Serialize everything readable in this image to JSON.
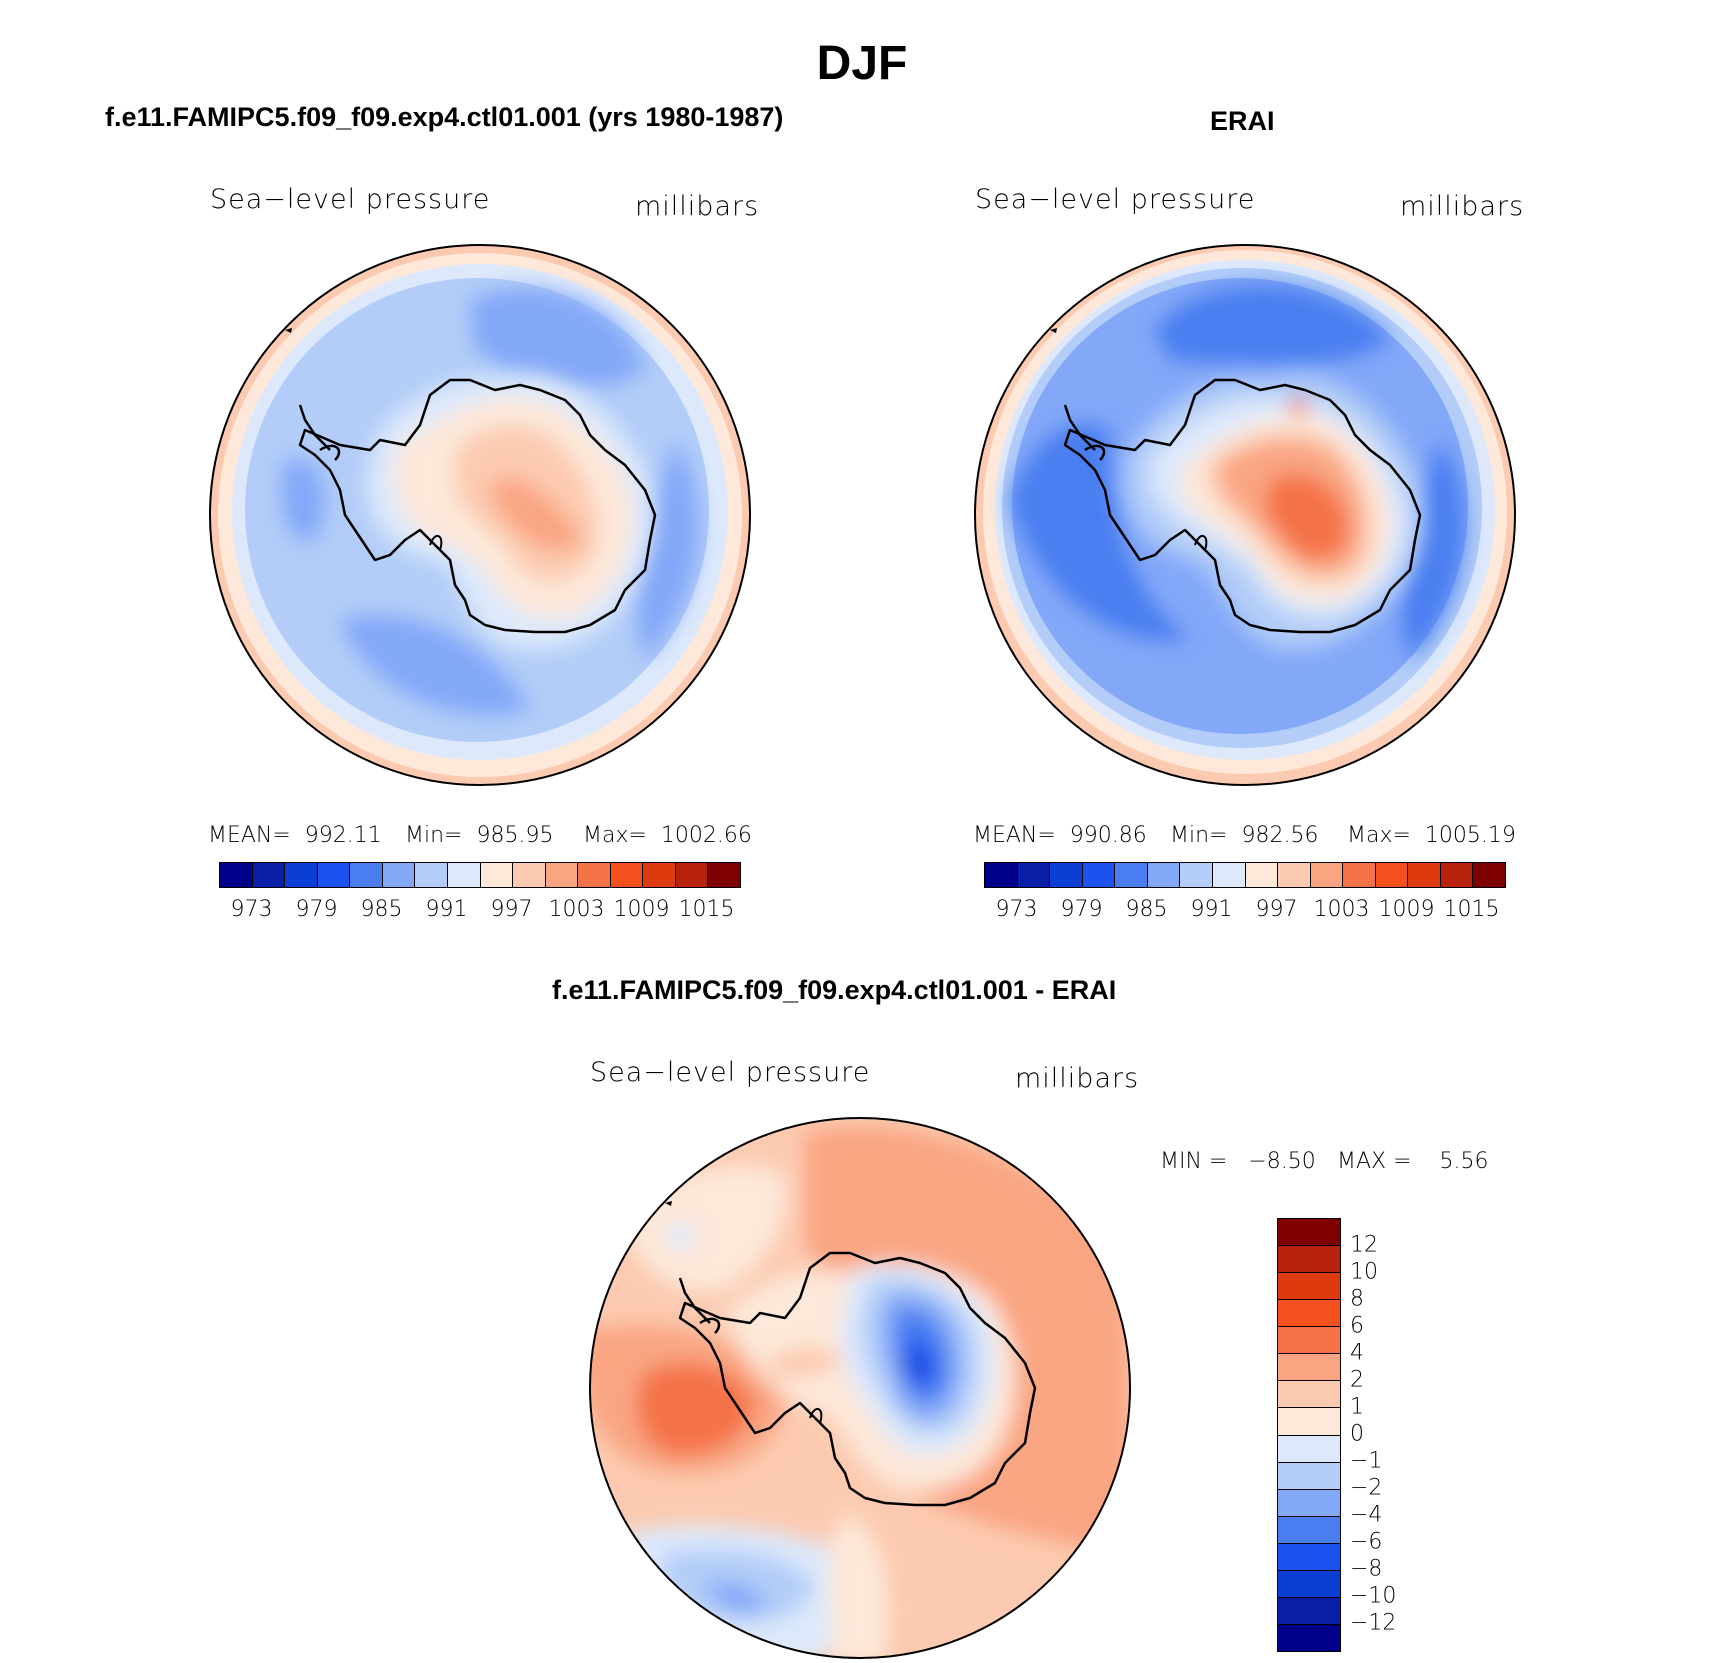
{
  "figure": {
    "title": "DJF",
    "field": "Sea−level pressure",
    "units": "millibars"
  },
  "panels": {
    "model": {
      "title": "f.e11.FAMIPC5.f09_f09.exp4.ctl01.001 (yrs 1980-1987)",
      "mean": "MEAN=  992.11",
      "min": "Min=  985.95",
      "max": "Max=  1002.66"
    },
    "obs": {
      "title": "ERAI",
      "mean": "MEAN=  990.86",
      "min": "Min=  982.56",
      "max": "Max=  1005.19"
    },
    "diff": {
      "title": "f.e11.FAMIPC5.f09_f09.exp4.ctl01.001 - ERAI",
      "min": "MIN =   −8.50",
      "max": "MAX =    5.56"
    }
  },
  "colorbar": {
    "colors": [
      "#00008b",
      "#0a1fa8",
      "#0b3fd4",
      "#1b52f0",
      "#4a7ef0",
      "#83a8f8",
      "#b3cdf8",
      "#dde9fb",
      "#fde8d9",
      "#fccab0",
      "#f9a582",
      "#f47247",
      "#f4511e",
      "#dd3a10",
      "#b7220c",
      "#7f0000"
    ],
    "tick_labels": [
      "973",
      "979",
      "985",
      "991",
      "997",
      "1003",
      "1009",
      "1015"
    ]
  },
  "diff_colorbar": {
    "colors": [
      "#7f0000",
      "#b7220c",
      "#dd3a10",
      "#f4511e",
      "#f47247",
      "#f9a582",
      "#fccab0",
      "#fde8d9",
      "#dde9fb",
      "#b3cdf8",
      "#83a8f8",
      "#4a7ef0",
      "#1b52f0",
      "#0b3fd4",
      "#0a1fa8",
      "#00008b"
    ],
    "tick_labels": [
      "12",
      "10",
      "8",
      "6",
      "4",
      "2",
      "1",
      "0",
      "−1",
      "−2",
      "−4",
      "−6",
      "−8",
      "−10",
      "−12"
    ]
  },
  "chart_data": [
    {
      "type": "heatmap",
      "title": "f.e11.FAMIPC5.f09_f09.exp4.ctl01.001 (yrs 1980-1987)",
      "variable": "Sea−level pressure",
      "units": "millibars",
      "projection": "south polar stereographic",
      "mean": 992.11,
      "min": 985.95,
      "max": 1002.66,
      "levels": [
        973,
        976,
        979,
        982,
        985,
        988,
        991,
        994,
        997,
        1000,
        1003,
        1006,
        1009,
        1012,
        1015
      ]
    },
    {
      "type": "heatmap",
      "title": "ERAI",
      "variable": "Sea−level pressure",
      "units": "millibars",
      "projection": "south polar stereographic",
      "mean": 990.86,
      "min": 982.56,
      "max": 1005.19,
      "levels": [
        973,
        976,
        979,
        982,
        985,
        988,
        991,
        994,
        997,
        1000,
        1003,
        1006,
        1009,
        1012,
        1015
      ]
    },
    {
      "type": "heatmap",
      "title": "f.e11.FAMIPC5.f09_f09.exp4.ctl01.001 - ERAI",
      "variable": "Sea−level pressure",
      "units": "millibars",
      "projection": "south polar stereographic",
      "min": -8.5,
      "max": 5.56,
      "levels": [
        -12,
        -10,
        -8,
        -6,
        -4,
        -2,
        -1,
        0,
        1,
        2,
        4,
        6,
        8,
        10,
        12
      ]
    }
  ]
}
